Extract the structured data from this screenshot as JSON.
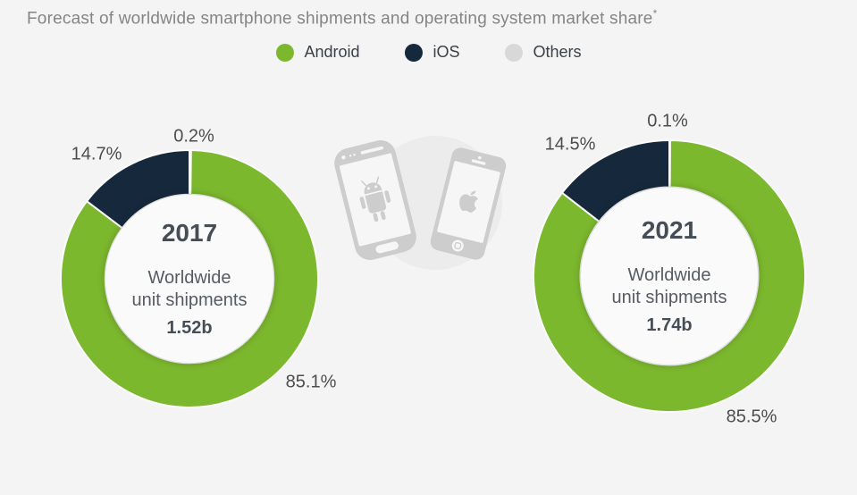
{
  "page": {
    "background": "#f4f4f4"
  },
  "title": {
    "text": "Forecast of worldwide smartphone shipments and operating system market share",
    "footnote_marker": "*"
  },
  "legend": {
    "items": [
      {
        "label": "Android",
        "color": "#7cb82e"
      },
      {
        "label": "iOS",
        "color": "#16293c"
      },
      {
        "label": "Others",
        "color": "#d8d8d8"
      }
    ]
  },
  "chart_data": [
    {
      "type": "pie",
      "variant": "donut",
      "year": "2017",
      "center_label": "Worldwide unit shipments",
      "center_label_lines": [
        "Worldwide",
        "unit shipments"
      ],
      "center_value": "1.52b",
      "categories": [
        "Android",
        "iOS",
        "Others"
      ],
      "values": [
        85.1,
        14.7,
        0.2
      ],
      "slices": [
        {
          "name": "Others",
          "value": 0.2,
          "label": "0.2%",
          "color": "#d8d8d8"
        },
        {
          "name": "Android",
          "value": 85.1,
          "label": "85.1%",
          "color": "#7cb82e"
        },
        {
          "name": "iOS",
          "value": 14.7,
          "label": "14.7%",
          "color": "#16293c"
        }
      ],
      "start_angle_deg": 0,
      "clockwise": true,
      "inner_radius_ratio": 0.65
    },
    {
      "type": "pie",
      "variant": "donut",
      "year": "2021",
      "center_label": "Worldwide unit shipments",
      "center_label_lines": [
        "Worldwide",
        "unit shipments"
      ],
      "center_value": "1.74b",
      "categories": [
        "Android",
        "iOS",
        "Others"
      ],
      "values": [
        85.5,
        14.5,
        0.1
      ],
      "slices": [
        {
          "name": "Others",
          "value": 0.1,
          "label": "0.1%",
          "color": "#d8d8d8"
        },
        {
          "name": "Android",
          "value": 85.5,
          "label": "85.5%",
          "color": "#7cb82e"
        },
        {
          "name": "iOS",
          "value": 14.5,
          "label": "14.5%",
          "color": "#16293c"
        }
      ],
      "start_angle_deg": 0,
      "clockwise": true,
      "inner_radius_ratio": 0.65
    }
  ],
  "center_graphic": {
    "description": "Android smartphone and Apple iPhone over a gray circle"
  }
}
